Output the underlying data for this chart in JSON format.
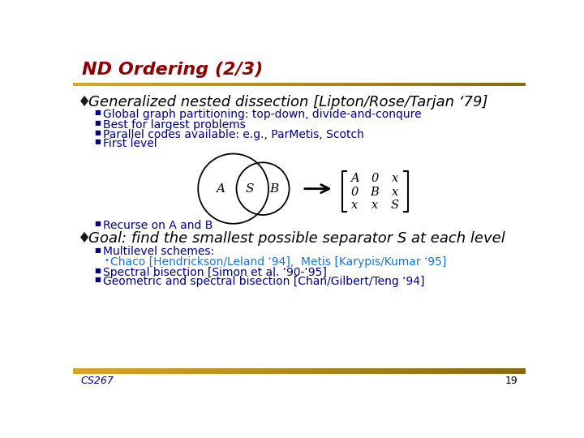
{
  "title": "ND Ordering (2/3)",
  "title_color": "#8B0000",
  "background_color": "#FFFFFF",
  "slide_number": "19",
  "footer_text": "CS267",
  "sub1a": "Global graph partitioning: top-down, divide-and-conqure",
  "sub1b": "Best for largest problems",
  "sub1c": "Parallel codes available: e.g., ParMetis, Scotch",
  "sub1d": "First level",
  "sub1e": "Recurse on A and B",
  "sub2a": "Multilevel schemes:",
  "sub2b": "Chaco [Hendrickson/Leland ‘94],  Metis [Karypis/Kumar ‘95]",
  "sub2c": "Spectral bisection [Simon et al. ‘90-‘95]",
  "sub2d": "Geometric and spectral bisection [Chan/Gilbert/Teng ‘94]",
  "text_color_navy": "#000080",
  "text_color_cyan": "#1874CD",
  "text_color_black": "#000000",
  "gold_bar_light": "#D4A820",
  "gold_bar_dark": "#8B6914",
  "title_font_size": 16,
  "main_font_size": 13,
  "sub_font_size": 10
}
